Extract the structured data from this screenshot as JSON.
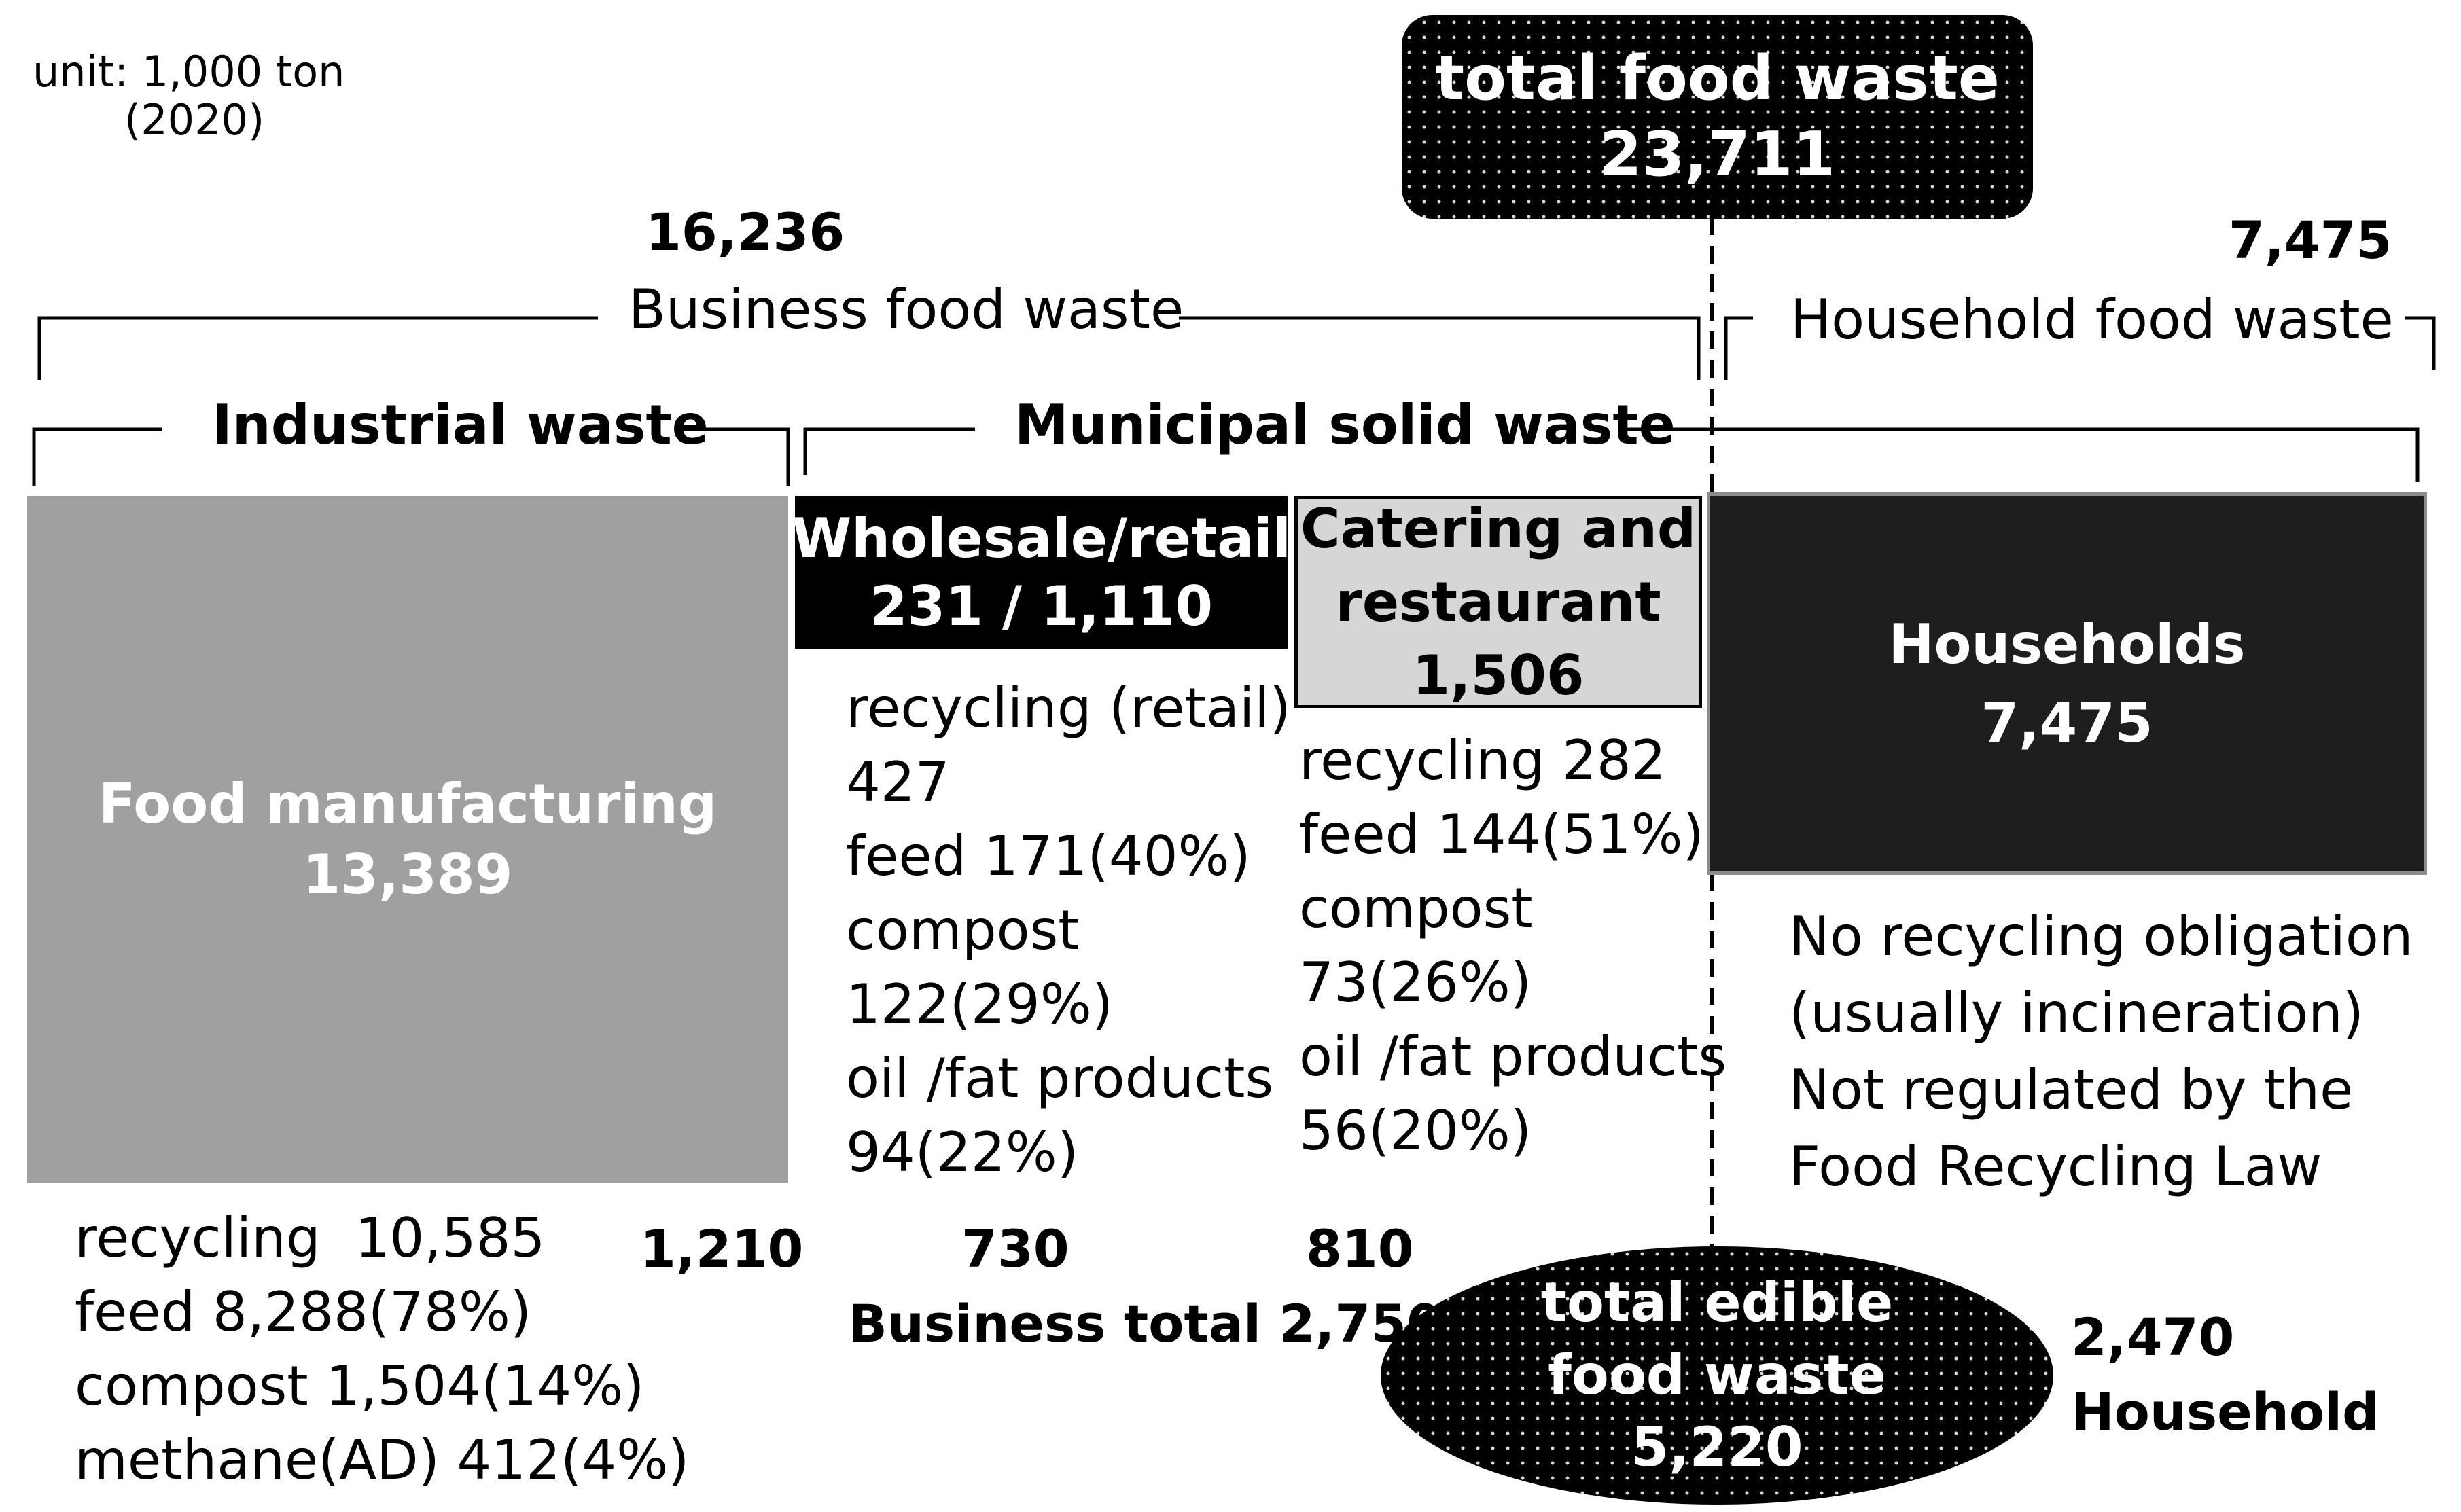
{
  "unit": {
    "line1": "unit: 1,000 ton",
    "line2": "(2020)"
  },
  "total": {
    "label": "total food waste",
    "value": "23,711"
  },
  "business": {
    "value": "16,236",
    "label": "Business food waste"
  },
  "household_group": {
    "value": "7,475",
    "label": "Household food waste"
  },
  "industrial_label": "Industrial waste",
  "municipal_label": "Municipal solid waste",
  "food_manufacturing": {
    "label": "Food manufacturing",
    "value": "13,389",
    "color": "#a0a0a0",
    "details": [
      "recycling  10,585",
      "feed 8,288(78%)",
      "compost 1,504(14%)",
      "methane(AD) 412(4%)"
    ],
    "edible": "1,210"
  },
  "wholesale": {
    "label": "Wholesale/retail",
    "value": "231 / 1,110",
    "color": "#000000",
    "details": [
      "recycling (retail)",
      "427",
      "feed 171(40%)",
      "compost",
      "122(29%)",
      "oil /fat products",
      "94(22%)"
    ],
    "edible": "730"
  },
  "catering": {
    "label_line1": "Catering and",
    "label_line2": "restaurant",
    "value": "1,506",
    "color": "#d6d6d6",
    "details": [
      "recycling 282",
      "feed 144(51%)",
      "compost",
      "73(26%)",
      "oil /fat products",
      "56(20%)"
    ],
    "edible": "810"
  },
  "households": {
    "label": "Households",
    "value": "7,475",
    "color": "#1e1e1e",
    "notes": [
      "No recycling obligation",
      "(usually incineration)",
      "Not regulated by the",
      "Food Recycling Law"
    ]
  },
  "business_total": "Business total 2,750",
  "edible_total": {
    "line1": "total edible",
    "line2": "food waste",
    "value": "5,220"
  },
  "household_edible": {
    "value": "2,470",
    "label": "Household"
  }
}
